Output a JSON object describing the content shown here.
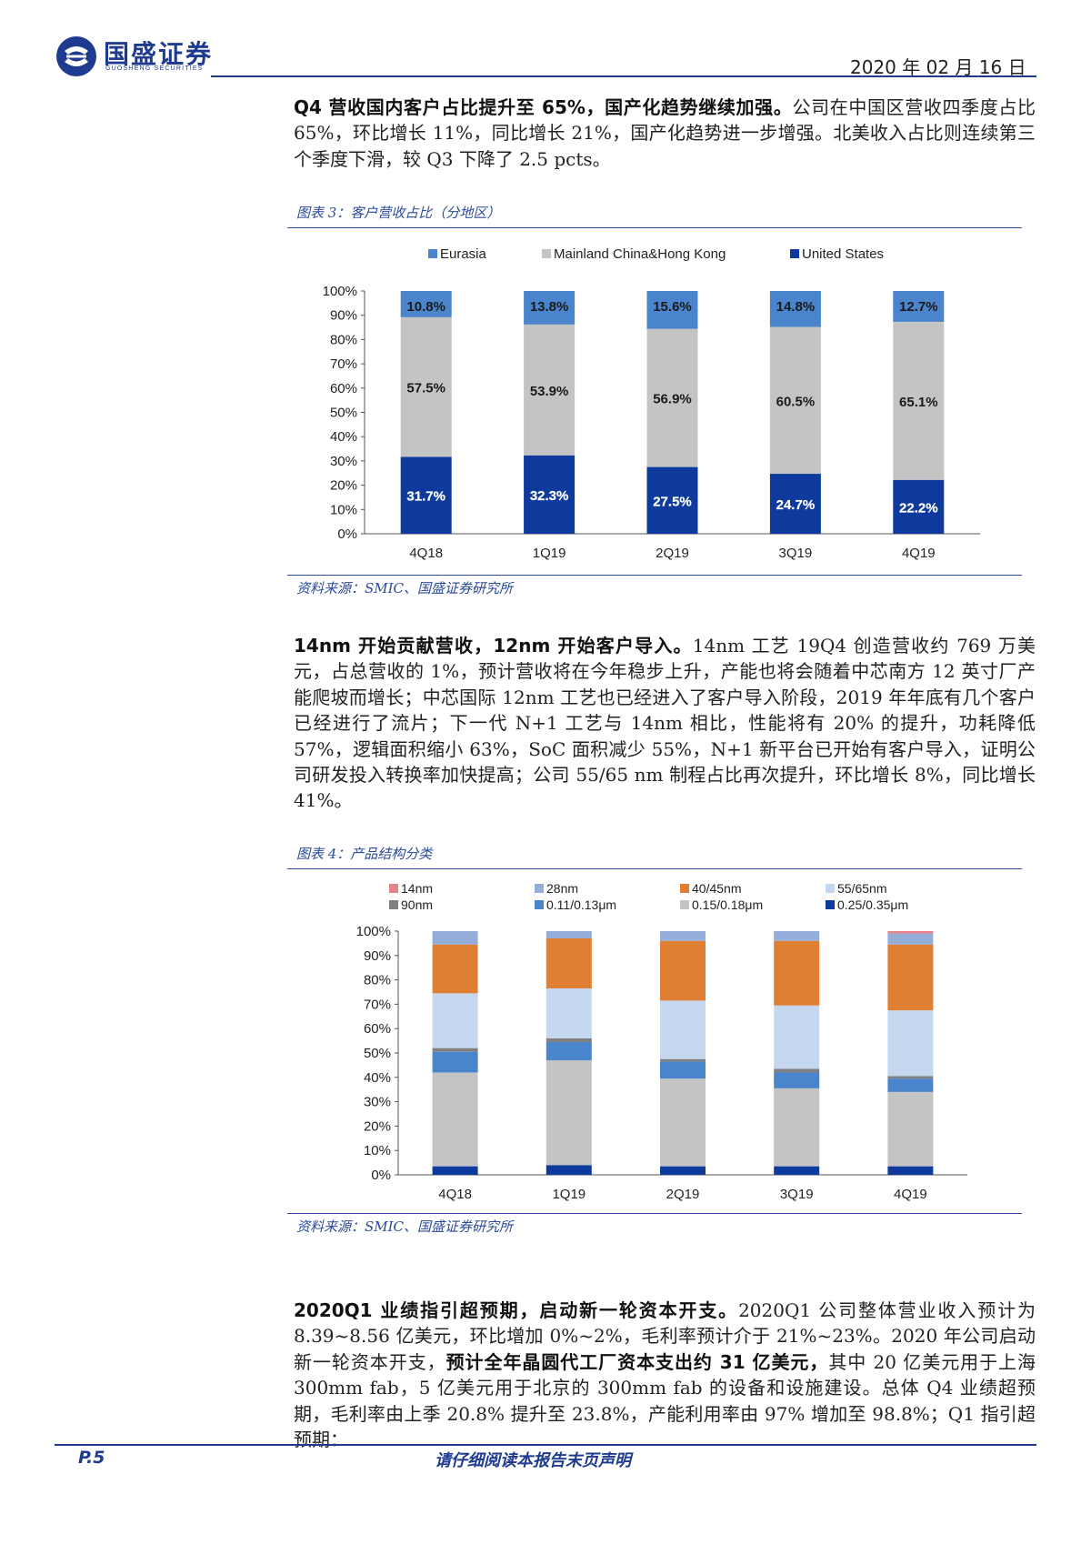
{
  "header": {
    "company_name": "国盛证券",
    "company_name_en": "GUOSHENG SECURITIES",
    "date": "2020 年 02 月 16 日"
  },
  "para1": {
    "bold": "Q4 营收国内客户占比提升至 65%，国产化趋势继续加强。",
    "text": "公司在中国区营收四季度占比 65%，环比增长 11%，同比增长 21%，国产化趋势进一步增强。北美收入占比则连续第三个季度下滑，较 Q3 下降了 2.5 pcts。"
  },
  "figure3": {
    "title": "图表 3：客户营收占比（分地区）",
    "source": "资料来源：SMIC、国盛证券研究所"
  },
  "para2": {
    "bold": "14nm 开始贡献营收，12nm 开始客户导入。",
    "text": "14nm 工艺 19Q4 创造营收约 769 万美元，占总营收的 1%，预计营收将在今年稳步上升，产能也将会随着中芯南方 12 英寸厂产能爬坡而增长；中芯国际 12nm 工艺也已经进入了客户导入阶段，2019 年年底有几个客户已经进行了流片；下一代 N+1 工艺与 14nm 相比，性能将有 20% 的提升，功耗降低 57%，逻辑面积缩小 63%，SoC 面积减少 55%，N+1 新平台已开始有客户导入，证明公司研发投入转换率加快提高；公司 55/65 nm 制程占比再次提升，环比增长 8%，同比增长 41%。"
  },
  "figure4": {
    "title": "图表 4：产品结构分类",
    "source": "资料来源：SMIC、国盛证券研究所"
  },
  "para3": {
    "bold1": "2020Q1 业绩指引超预期，启动新一轮资本开支。",
    "text1": "2020Q1 公司整体营业收入预计为 8.39~8.56 亿美元，环比增加 0%~2%，毛利率预计介于 21%~23%。2020 年公司启动新一轮资本开支，",
    "bold2": "预计全年晶圆代工厂资本支出约 31 亿美元，",
    "text2": "其中 20 亿美元用于上海 300mm fab，5 亿美元用于北京的 300mm fab 的设备和设施建设。总体 Q4 业绩超预期，毛利率由上季 20.8% 提升至 23.8%，产能利用率由 97% 增加至 98.8%；Q1 指引超预期："
  },
  "footer": {
    "page": "P.5",
    "notice": "请仔细阅读本报告末页声明"
  },
  "chart_data": [
    {
      "type": "bar",
      "stacked": true,
      "title": "",
      "categories": [
        "4Q18",
        "1Q19",
        "2Q19",
        "3Q19",
        "4Q19"
      ],
      "series": [
        {
          "name": "United States",
          "color": "#0d3a9c",
          "values": [
            31.7,
            32.3,
            27.5,
            24.7,
            22.2
          ],
          "labels": [
            "31.7%",
            "32.3%",
            "27.5%",
            "24.7%",
            "22.2%"
          ]
        },
        {
          "name": "Mainland China&Hong Kong",
          "color": "#c4c4c4",
          "values": [
            57.5,
            53.9,
            56.9,
            60.5,
            65.1
          ],
          "labels": [
            "57.5%",
            "53.9%",
            "56.9%",
            "60.5%",
            "65.1%"
          ]
        },
        {
          "name": "Eurasia",
          "color": "#4a84cc",
          "values": [
            10.8,
            13.8,
            15.6,
            14.8,
            12.7
          ],
          "labels": [
            "10.8%",
            "13.8%",
            "15.6%",
            "14.8%",
            "12.7%"
          ]
        }
      ],
      "legend_order": [
        "Eurasia",
        "Mainland China&Hong Kong",
        "United States"
      ],
      "yticks": [
        "0%",
        "10%",
        "20%",
        "30%",
        "40%",
        "50%",
        "60%",
        "70%",
        "80%",
        "90%",
        "100%"
      ],
      "ylim": [
        0,
        100
      ],
      "legend": "top"
    },
    {
      "type": "bar",
      "stacked": true,
      "title": "",
      "categories": [
        "4Q18",
        "1Q19",
        "2Q19",
        "3Q19",
        "4Q19"
      ],
      "series": [
        {
          "name": "0.25/0.35μm",
          "color": "#0d3a9c",
          "values": [
            3.5,
            4,
            3.5,
            3.5,
            3.5
          ]
        },
        {
          "name": "0.15/0.18μm",
          "color": "#c4c4c4",
          "values": [
            38.5,
            43,
            36,
            32,
            30.5
          ]
        },
        {
          "name": "0.11/0.13μm",
          "color": "#4a84cc",
          "values": [
            8.5,
            7.5,
            7,
            6.5,
            5.5
          ]
        },
        {
          "name": "90nm",
          "color": "#7f7f7f",
          "values": [
            1.5,
            1.5,
            1,
            1.5,
            1
          ]
        },
        {
          "name": "55/65nm",
          "color": "#c5d6ef",
          "values": [
            22.5,
            20.5,
            24,
            26,
            27
          ]
        },
        {
          "name": "40/45nm",
          "color": "#e07e34",
          "values": [
            20,
            20.5,
            24.5,
            26.5,
            27
          ]
        },
        {
          "name": "28nm",
          "color": "#94add9",
          "values": [
            5.5,
            3,
            4,
            4,
            4.5
          ]
        },
        {
          "name": "14nm",
          "color": "#e5838b",
          "values": [
            0,
            0,
            0,
            0,
            1
          ]
        }
      ],
      "legend_order": [
        "14nm",
        "28nm",
        "40/45nm",
        "55/65nm",
        "90nm",
        "0.11/0.13μm",
        "0.15/0.18μm",
        "0.25/0.35μm"
      ],
      "yticks": [
        "0%",
        "10%",
        "20%",
        "30%",
        "40%",
        "50%",
        "60%",
        "70%",
        "80%",
        "90%",
        "100%"
      ],
      "ylim": [
        0,
        100
      ],
      "legend": "top"
    }
  ]
}
